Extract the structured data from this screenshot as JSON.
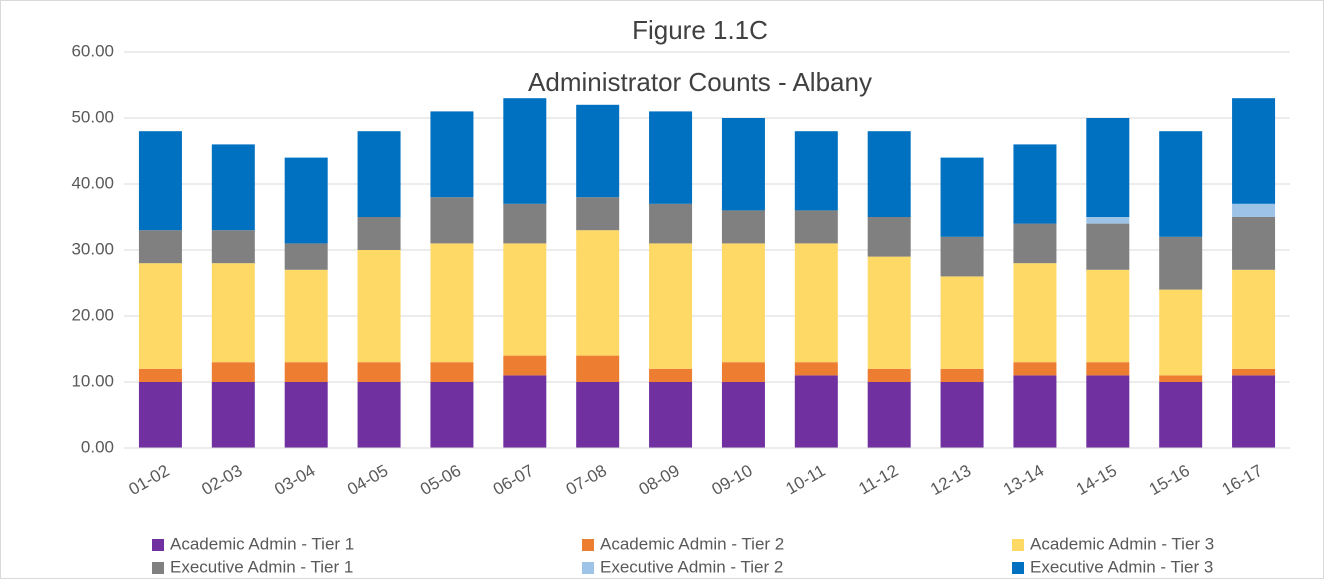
{
  "chart_data": {
    "type": "stacked_bar",
    "title": "Figure 1.1C",
    "subtitle": "Administrator Counts - Albany",
    "categories": [
      "01-02",
      "02-03",
      "03-04",
      "04-05",
      "05-06",
      "06-07",
      "07-08",
      "08-09",
      "09-10",
      "10-11",
      "11-12",
      "12-13",
      "13-14",
      "14-15",
      "15-16",
      "16-17"
    ],
    "series": [
      {
        "name": "Academic Admin - Tier 1",
        "color": "#7030a0",
        "values": [
          10,
          10,
          10,
          10,
          10,
          11,
          10,
          10,
          10,
          11,
          10,
          10,
          11,
          11,
          10,
          11
        ]
      },
      {
        "name": "Academic Admin - Tier 2",
        "color": "#ed7d31",
        "values": [
          2,
          3,
          3,
          3,
          3,
          3,
          4,
          2,
          3,
          2,
          2,
          2,
          2,
          2,
          1,
          1
        ]
      },
      {
        "name": "Academic Admin - Tier 3",
        "color": "#ffd966",
        "values": [
          16,
          15,
          14,
          17,
          18,
          17,
          19,
          19,
          18,
          18,
          17,
          14,
          15,
          14,
          13,
          15
        ]
      },
      {
        "name": "Executive Admin - Tier 1",
        "color": "#808080",
        "values": [
          5,
          5,
          4,
          5,
          7,
          6,
          5,
          6,
          5,
          5,
          6,
          6,
          6,
          7,
          8,
          8
        ]
      },
      {
        "name": "Executive Admin - Tier 2",
        "color": "#9dc3e6",
        "values": [
          0,
          0,
          0,
          0,
          0,
          0,
          0,
          0,
          0,
          0,
          0,
          0,
          0,
          1,
          0,
          2
        ]
      },
      {
        "name": "Executive Admin - Tier 3",
        "color": "#0070c0",
        "values": [
          15,
          13,
          13,
          13,
          13,
          16,
          14,
          14,
          14,
          12,
          13,
          12,
          12,
          15,
          16,
          16
        ]
      }
    ],
    "ylim": [
      0,
      60
    ],
    "yticks": [
      {
        "value": 0,
        "label": "0.00"
      },
      {
        "value": 10,
        "label": "10.00"
      },
      {
        "value": 20,
        "label": "20.00"
      },
      {
        "value": 30,
        "label": "30.00"
      },
      {
        "value": 40,
        "label": "40.00"
      },
      {
        "value": 50,
        "label": "50.00"
      },
      {
        "value": 60,
        "label": "60.00"
      }
    ],
    "grid": true,
    "legend": "bottom"
  }
}
